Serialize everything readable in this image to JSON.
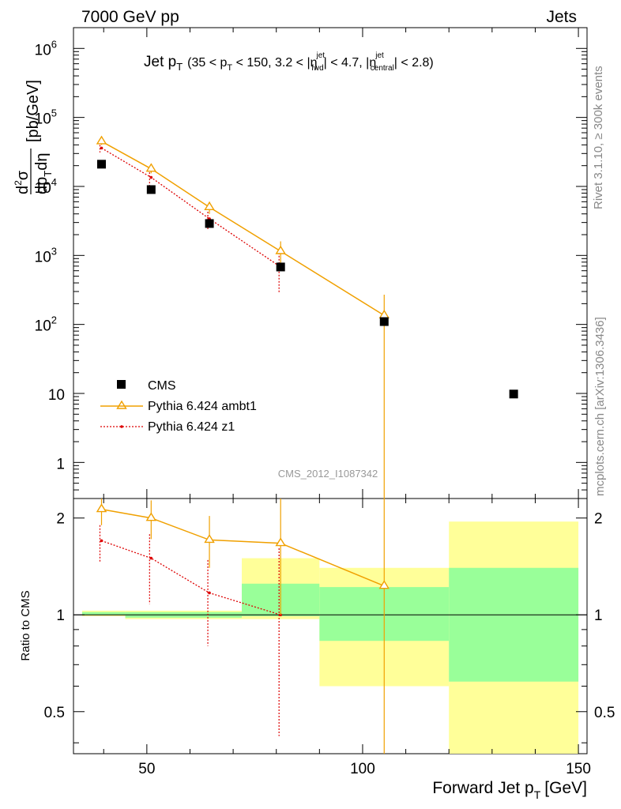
{
  "header": {
    "left": "7000 GeV pp",
    "right": "Jets"
  },
  "side_labels": {
    "rivet": "Rivet 3.1.10, ≥ 300k events",
    "mcplots": "mcplots.cern.ch [arXiv:1306.3436]"
  },
  "watermark": "CMS_2012_I1087342",
  "colors": {
    "cms": "#000000",
    "ambt1": "#f0a000",
    "z1": "#dd0000",
    "band_yellow": "#ffff99",
    "band_green": "#99ff99"
  },
  "chart_data": {
    "type": "line",
    "title": {
      "main": "Jet p",
      "main_sub": "T",
      "c0": "(35 < p",
      "c0_sub": "T",
      "c1": " < 150, 3.2 < |η",
      "c1_sup": "jet",
      "c1_sub": "fwd",
      "c2": "| < 4.7, |η",
      "c2_sup": "jet",
      "c2_sub": "central",
      "c3": "| < 2.8)"
    },
    "ylabel": {
      "num": "d",
      "num_sup": "2",
      "num_tail": "σ",
      "den": "dp",
      "den_sub": "T",
      "den_tail": "dη",
      "unit": "[pb/GeV]"
    },
    "xlabel": {
      "main": "Forward Jet p",
      "sub": "T",
      "unit": "[GeV]"
    },
    "ratio_ylabel": "Ratio to CMS",
    "xlim": [
      33,
      152
    ],
    "ylim": [
      0.3,
      2000000
    ],
    "yscale": "log",
    "ratio_ylim": [
      0.37,
      2.3
    ],
    "x_ticks": [
      50,
      100,
      150
    ],
    "x_tick_labels": [
      "50",
      "100",
      "150"
    ],
    "y_tick_labels": [
      {
        "v": 1,
        "base": "1",
        "exp": ""
      },
      {
        "v": 10,
        "base": "10",
        "exp": ""
      },
      {
        "v": 100,
        "base": "10",
        "exp": "2"
      },
      {
        "v": 1000,
        "base": "10",
        "exp": "3"
      },
      {
        "v": 10000,
        "base": "10",
        "exp": "4"
      },
      {
        "v": 100000,
        "base": "10",
        "exp": "5"
      },
      {
        "v": 1000000,
        "base": "10",
        "exp": "6"
      }
    ],
    "ratio_tick_labels": [
      {
        "v": 0.5,
        "label": "0.5"
      },
      {
        "v": 1,
        "label": "1"
      },
      {
        "v": 2,
        "label": "2"
      }
    ],
    "legend": {
      "position": "bottom-left",
      "entries": [
        "CMS",
        "Pythia 6.424 ambt1",
        "Pythia 6.424 z1"
      ]
    },
    "series": [
      {
        "name": "CMS",
        "style": "marker-square",
        "points": [
          {
            "x": 39.5,
            "y": 21000
          },
          {
            "x": 51.0,
            "y": 9000
          },
          {
            "x": 64.5,
            "y": 2900
          },
          {
            "x": 81.0,
            "y": 680
          },
          {
            "x": 105.0,
            "y": 110
          },
          {
            "x": 135.0,
            "y": 9.8
          }
        ]
      },
      {
        "name": "Pythia 6.424 ambt1",
        "style": "line-triangle",
        "points": [
          {
            "x": 39.5,
            "y": 45000,
            "lo": 40000,
            "hi": 50000
          },
          {
            "x": 51.0,
            "y": 18000,
            "lo": 15500,
            "hi": 20500
          },
          {
            "x": 64.5,
            "y": 5000,
            "lo": 4000,
            "hi": 6000
          },
          {
            "x": 81.0,
            "y": 1150,
            "lo": 700,
            "hi": 1600
          },
          {
            "x": 105.0,
            "y": 135,
            "lo": 0.0001,
            "hi": 270
          }
        ]
      },
      {
        "name": "Pythia 6.424 z1",
        "style": "dotted-dot",
        "points": [
          {
            "x": 39.5,
            "y": 36000,
            "lo": 31000,
            "hi": 40000
          },
          {
            "x": 51.0,
            "y": 13500,
            "lo": 9500,
            "hi": 16000
          },
          {
            "x": 64.5,
            "y": 3400,
            "lo": 2300,
            "hi": 4300
          },
          {
            "x": 81.0,
            "y": 680,
            "lo": 280,
            "hi": 1100
          }
        ]
      }
    ],
    "ratio_series": [
      {
        "name": "Pythia 6.424 ambt1",
        "points": [
          {
            "x": 39.5,
            "y": 2.13,
            "lo": 1.9,
            "hi": 2.38
          },
          {
            "x": 51.0,
            "y": 2.0,
            "lo": 1.72,
            "hi": 2.27
          },
          {
            "x": 64.5,
            "y": 1.71,
            "lo": 1.4,
            "hi": 2.03
          },
          {
            "x": 81.0,
            "y": 1.67,
            "lo": 1.0,
            "hi": 2.3
          },
          {
            "x": 105.0,
            "y": 1.23,
            "lo": 0.01,
            "hi": 2.45
          }
        ]
      },
      {
        "name": "Pythia 6.424 z1",
        "points": [
          {
            "x": 39.5,
            "y": 1.7,
            "lo": 1.46,
            "hi": 1.9
          },
          {
            "x": 51.0,
            "y": 1.5,
            "lo": 1.08,
            "hi": 1.78
          },
          {
            "x": 64.5,
            "y": 1.17,
            "lo": 0.8,
            "hi": 1.48
          },
          {
            "x": 81.0,
            "y": 1.0,
            "lo": 0.42,
            "hi": 1.61
          }
        ]
      }
    ],
    "uncertainty_bands": [
      {
        "x0": 35,
        "x1": 45,
        "y_lo": 0.99,
        "y_hi": 1.03,
        "g_lo": 1.0,
        "g_hi": 1.02
      },
      {
        "x0": 45,
        "x1": 72,
        "y_lo": 0.97,
        "y_hi": 1.03,
        "g_lo": 0.98,
        "g_hi": 1.02
      },
      {
        "x0": 72,
        "x1": 90,
        "y_lo": 0.97,
        "y_hi": 1.5,
        "g_lo": 0.99,
        "g_hi": 1.25
      },
      {
        "x0": 90,
        "x1": 120,
        "y_lo": 0.6,
        "y_hi": 1.4,
        "g_lo": 0.83,
        "g_hi": 1.22
      },
      {
        "x0": 120,
        "x1": 150,
        "y_lo": 0.37,
        "y_hi": 1.95,
        "g_lo": 0.62,
        "g_hi": 1.4
      }
    ]
  }
}
